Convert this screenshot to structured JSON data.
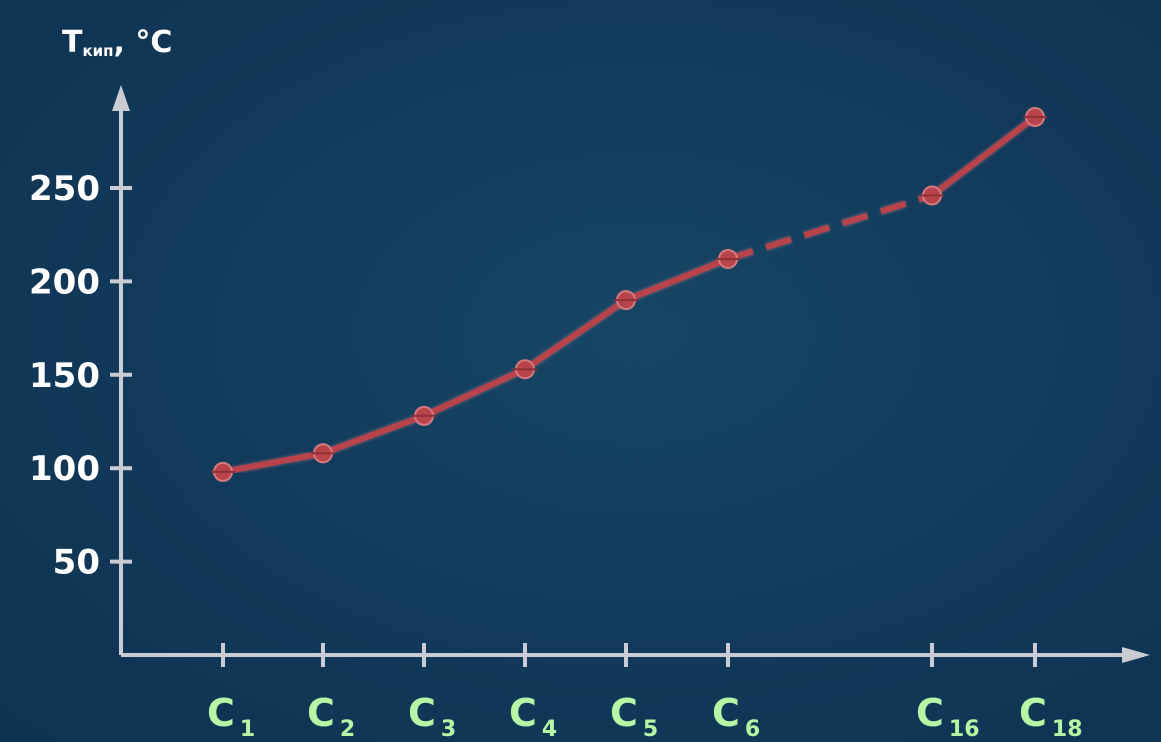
{
  "chart_data": {
    "type": "line",
    "title": {
      "main": "T",
      "subscript": "кип",
      "unit": ", °C"
    },
    "categories": [
      {
        "main": "C",
        "sub": "1"
      },
      {
        "main": "C",
        "sub": "2"
      },
      {
        "main": "C",
        "sub": "3"
      },
      {
        "main": "C",
        "sub": "4"
      },
      {
        "main": "C",
        "sub": "5"
      },
      {
        "main": "C",
        "sub": "6"
      },
      {
        "main": "C",
        "sub": "16"
      },
      {
        "main": "C",
        "sub": "18"
      }
    ],
    "y_ticks": [
      "50",
      "100",
      "150",
      "200",
      "250"
    ],
    "ylim": [
      0,
      275
    ],
    "series": [
      {
        "values": [
          98,
          108,
          128,
          153,
          190,
          212,
          246,
          288
        ],
        "dashed_segments": [
          [
            5,
            6
          ]
        ]
      }
    ],
    "grid": false,
    "colors": {
      "background": "#133a57",
      "axis": "#c9ccd2",
      "line": "#b9434a",
      "category_label": "#b8f5a4",
      "tick_label": "#ffffff"
    }
  }
}
